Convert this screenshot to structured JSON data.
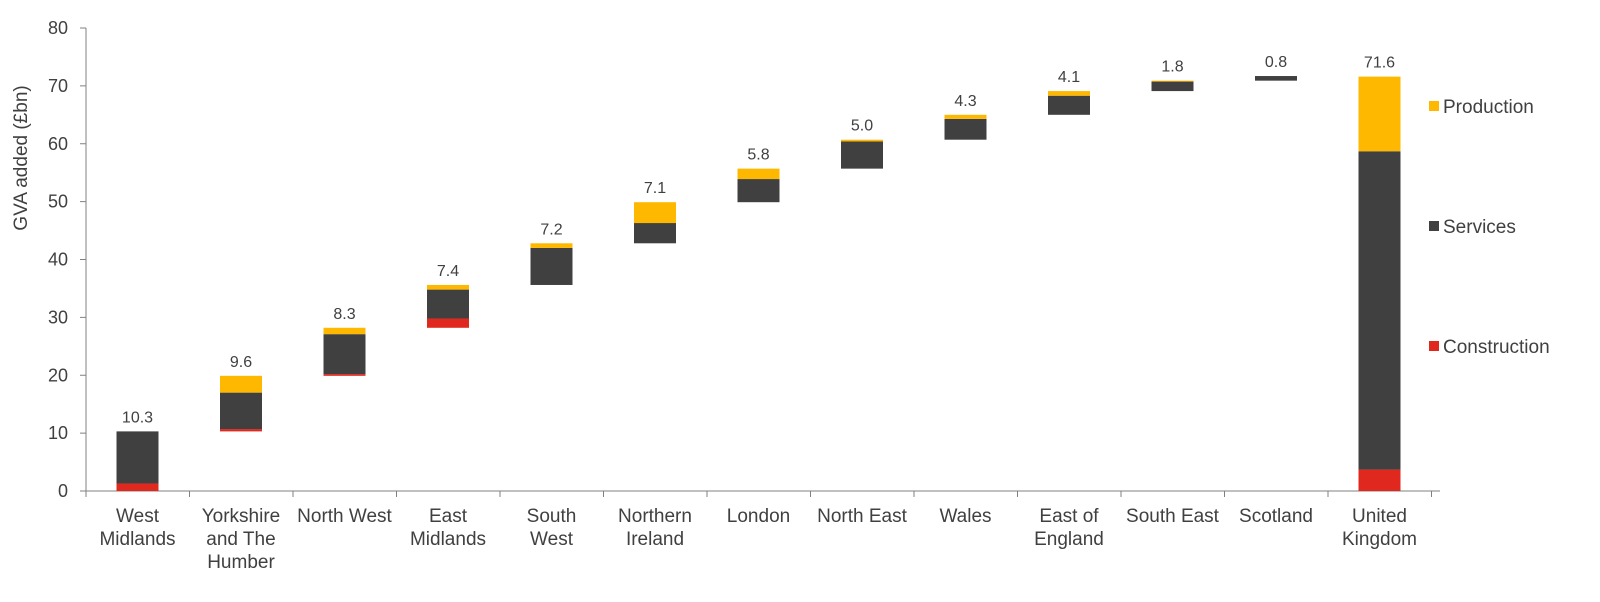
{
  "chart_data": {
    "type": "bar",
    "subtype": "stacked waterfall",
    "ylabel": "GVA added (£bn)",
    "ylim": [
      0,
      80
    ],
    "yticks": [
      "0",
      "10",
      "20",
      "30",
      "40",
      "50",
      "60",
      "70",
      "80"
    ],
    "grid": false,
    "legend_position": "right",
    "colors": {
      "Construction": "#e0281e",
      "Services": "#404040",
      "Production": "#ffb800"
    },
    "categories": [
      [
        "West",
        "Midlands"
      ],
      [
        "Yorkshire",
        "and The",
        "Humber"
      ],
      [
        "North West"
      ],
      [
        "East",
        "Midlands"
      ],
      [
        "South",
        "West"
      ],
      [
        "Northern",
        "Ireland"
      ],
      [
        "London"
      ],
      [
        "North East"
      ],
      [
        "Wales"
      ],
      [
        "East of",
        "England"
      ],
      [
        "South East"
      ],
      [
        "Scotland"
      ],
      [
        "United",
        "Kingdom"
      ]
    ],
    "base": [
      0,
      10.3,
      19.9,
      28.2,
      35.6,
      42.8,
      49.9,
      55.7,
      60.7,
      65.0,
      69.1,
      70.9,
      0
    ],
    "series": [
      {
        "name": "Construction",
        "values": [
          1.3,
          0.4,
          0.3,
          1.6,
          0,
          0,
          0,
          0,
          0,
          0,
          0,
          0,
          3.7
        ]
      },
      {
        "name": "Services",
        "values": [
          9.0,
          6.3,
          6.9,
          5.0,
          6.4,
          3.5,
          4.0,
          4.7,
          3.6,
          3.3,
          1.7,
          0.8,
          55.0
        ]
      },
      {
        "name": "Production",
        "values": [
          0,
          2.9,
          1.1,
          0.8,
          0.8,
          3.6,
          1.8,
          0.3,
          0.7,
          0.8,
          0.1,
          0,
          12.9
        ]
      }
    ],
    "data_labels": [
      "10.3",
      "9.6",
      "8.3",
      "7.4",
      "7.2",
      "7.1",
      "5.8",
      "5.0",
      "4.3",
      "4.1",
      "1.8",
      "0.8",
      "71.6"
    ],
    "legend": [
      "Production",
      "Services",
      "Construction"
    ]
  }
}
